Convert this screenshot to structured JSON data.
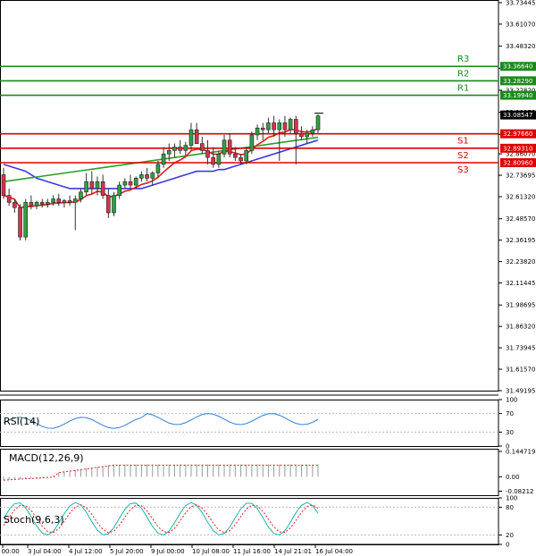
{
  "chart_data": {
    "type": "candlestick",
    "price_axis": {
      "ticks": [
        "33.73445",
        "33.61070",
        "33.48320",
        "33.35570",
        "33.22820",
        "33.10070",
        "32.97320",
        "32.86070",
        "32.73695",
        "32.61320",
        "32.48570",
        "32.36195",
        "32.23820",
        "32.11445",
        "31.98695",
        "31.86320",
        "31.73945",
        "31.61570",
        "31.49195"
      ],
      "range": [
        31.49195,
        33.75
      ]
    },
    "time_axis": {
      "ticks": [
        "3 Jul 00:00",
        "3 Jul 04:00",
        "4 Jul 12:00",
        "5 Jul 20:00",
        "9 Jul 00:00",
        "10 Jul 08:00",
        "11 Jul 16:00",
        "14 Jul 21:01",
        "16 Jul 04:00"
      ]
    },
    "current_price": {
      "label": "33.08547",
      "value": 33.08547
    },
    "levels": [
      {
        "name": "R3",
        "label": "33.36640",
        "value": 33.3664,
        "color": "#1a8a1a"
      },
      {
        "name": "R2",
        "label": "33.28290",
        "value": 33.2829,
        "color": "#1a8a1a"
      },
      {
        "name": "R1",
        "label": "33.19940",
        "value": 33.1994,
        "color": "#1a8a1a"
      },
      {
        "name": "S1",
        "label": "32.97660",
        "value": 32.9766,
        "color": "#dd0000"
      },
      {
        "name": "S2",
        "label": "32.89310",
        "value": 32.8931,
        "color": "#dd0000"
      },
      {
        "name": "S3",
        "label": "32.80960",
        "value": 32.8096,
        "color": "#dd0000"
      }
    ],
    "candles": [
      [
        32.74,
        32.78,
        32.6,
        32.62
      ],
      [
        32.62,
        32.66,
        32.56,
        32.58
      ],
      [
        32.58,
        32.6,
        32.52,
        32.55
      ],
      [
        32.55,
        32.57,
        32.36,
        32.38
      ],
      [
        32.38,
        32.6,
        32.36,
        32.58
      ],
      [
        32.58,
        32.62,
        32.54,
        32.56
      ],
      [
        32.56,
        32.59,
        32.54,
        32.58
      ],
      [
        32.58,
        32.6,
        32.55,
        32.57
      ],
      [
        32.57,
        32.6,
        32.55,
        32.58
      ],
      [
        32.58,
        32.62,
        32.56,
        32.6
      ],
      [
        32.6,
        32.63,
        32.56,
        32.58
      ],
      [
        32.58,
        32.6,
        32.55,
        32.59
      ],
      [
        32.59,
        32.62,
        32.56,
        32.58
      ],
      [
        32.58,
        32.62,
        32.42,
        32.6
      ],
      [
        32.6,
        32.66,
        32.58,
        32.64
      ],
      [
        32.64,
        32.75,
        32.62,
        32.7
      ],
      [
        32.7,
        32.76,
        32.63,
        32.66
      ],
      [
        32.66,
        32.73,
        32.62,
        32.7
      ],
      [
        32.7,
        32.74,
        32.6,
        32.62
      ],
      [
        32.62,
        32.66,
        32.49,
        32.52
      ],
      [
        32.52,
        32.64,
        32.5,
        32.62
      ],
      [
        32.62,
        32.7,
        32.6,
        32.68
      ],
      [
        32.68,
        32.72,
        32.66,
        32.7
      ],
      [
        32.7,
        32.74,
        32.66,
        32.68
      ],
      [
        32.68,
        32.73,
        32.66,
        32.72
      ],
      [
        32.72,
        32.76,
        32.7,
        32.74
      ],
      [
        32.74,
        32.78,
        32.7,
        32.72
      ],
      [
        32.72,
        32.76,
        32.68,
        32.75
      ],
      [
        32.75,
        32.82,
        32.72,
        32.8
      ],
      [
        32.8,
        32.9,
        32.78,
        32.86
      ],
      [
        32.86,
        32.92,
        32.82,
        32.88
      ],
      [
        32.88,
        32.92,
        32.84,
        32.9
      ],
      [
        32.9,
        32.94,
        32.86,
        32.88
      ],
      [
        32.88,
        32.93,
        32.85,
        32.91
      ],
      [
        32.91,
        33.04,
        32.88,
        33.0
      ],
      [
        33.0,
        33.04,
        32.92,
        32.92
      ],
      [
        32.92,
        32.96,
        32.86,
        32.88
      ],
      [
        32.88,
        32.94,
        32.8,
        32.84
      ],
      [
        32.84,
        32.9,
        32.78,
        32.8
      ],
      [
        32.8,
        32.88,
        32.78,
        32.86
      ],
      [
        32.86,
        32.97,
        32.84,
        32.94
      ],
      [
        32.94,
        32.98,
        32.84,
        32.86
      ],
      [
        32.86,
        32.9,
        32.82,
        32.84
      ],
      [
        32.84,
        32.86,
        32.8,
        32.82
      ],
      [
        32.82,
        32.9,
        32.8,
        32.88
      ],
      [
        32.88,
        32.99,
        32.86,
        32.97
      ],
      [
        32.97,
        33.03,
        32.94,
        33.01
      ],
      [
        33.01,
        33.04,
        32.94,
        33.0
      ],
      [
        33.0,
        33.07,
        32.98,
        33.04
      ],
      [
        33.04,
        33.08,
        32.96,
        33.0
      ],
      [
        33.0,
        33.06,
        32.82,
        33.04
      ],
      [
        33.04,
        33.08,
        32.96,
        33.0
      ],
      [
        33.0,
        33.07,
        32.98,
        33.06
      ],
      [
        33.06,
        33.08,
        32.8,
        32.98
      ],
      [
        32.98,
        33.02,
        32.94,
        32.96
      ],
      [
        32.96,
        33.0,
        32.92,
        32.98
      ],
      [
        32.98,
        33.02,
        32.96,
        33.0
      ],
      [
        33.0,
        33.09,
        32.98,
        33.08
      ]
    ],
    "indicators": [
      {
        "name": "RSI(14)",
        "axis_ticks": [
          "100",
          "70",
          "30",
          "0"
        ],
        "range": [
          0,
          100
        ]
      },
      {
        "name": "MACD(12,26,9)",
        "axis_ticks": [
          "0.144719",
          "0.00",
          "-0.08212"
        ],
        "range": [
          -0.105,
          0.16
        ]
      },
      {
        "name": "Stoch(9,6,3)",
        "axis_ticks": [
          "100",
          "80",
          "20",
          "0"
        ],
        "range": [
          0,
          100
        ]
      }
    ]
  }
}
